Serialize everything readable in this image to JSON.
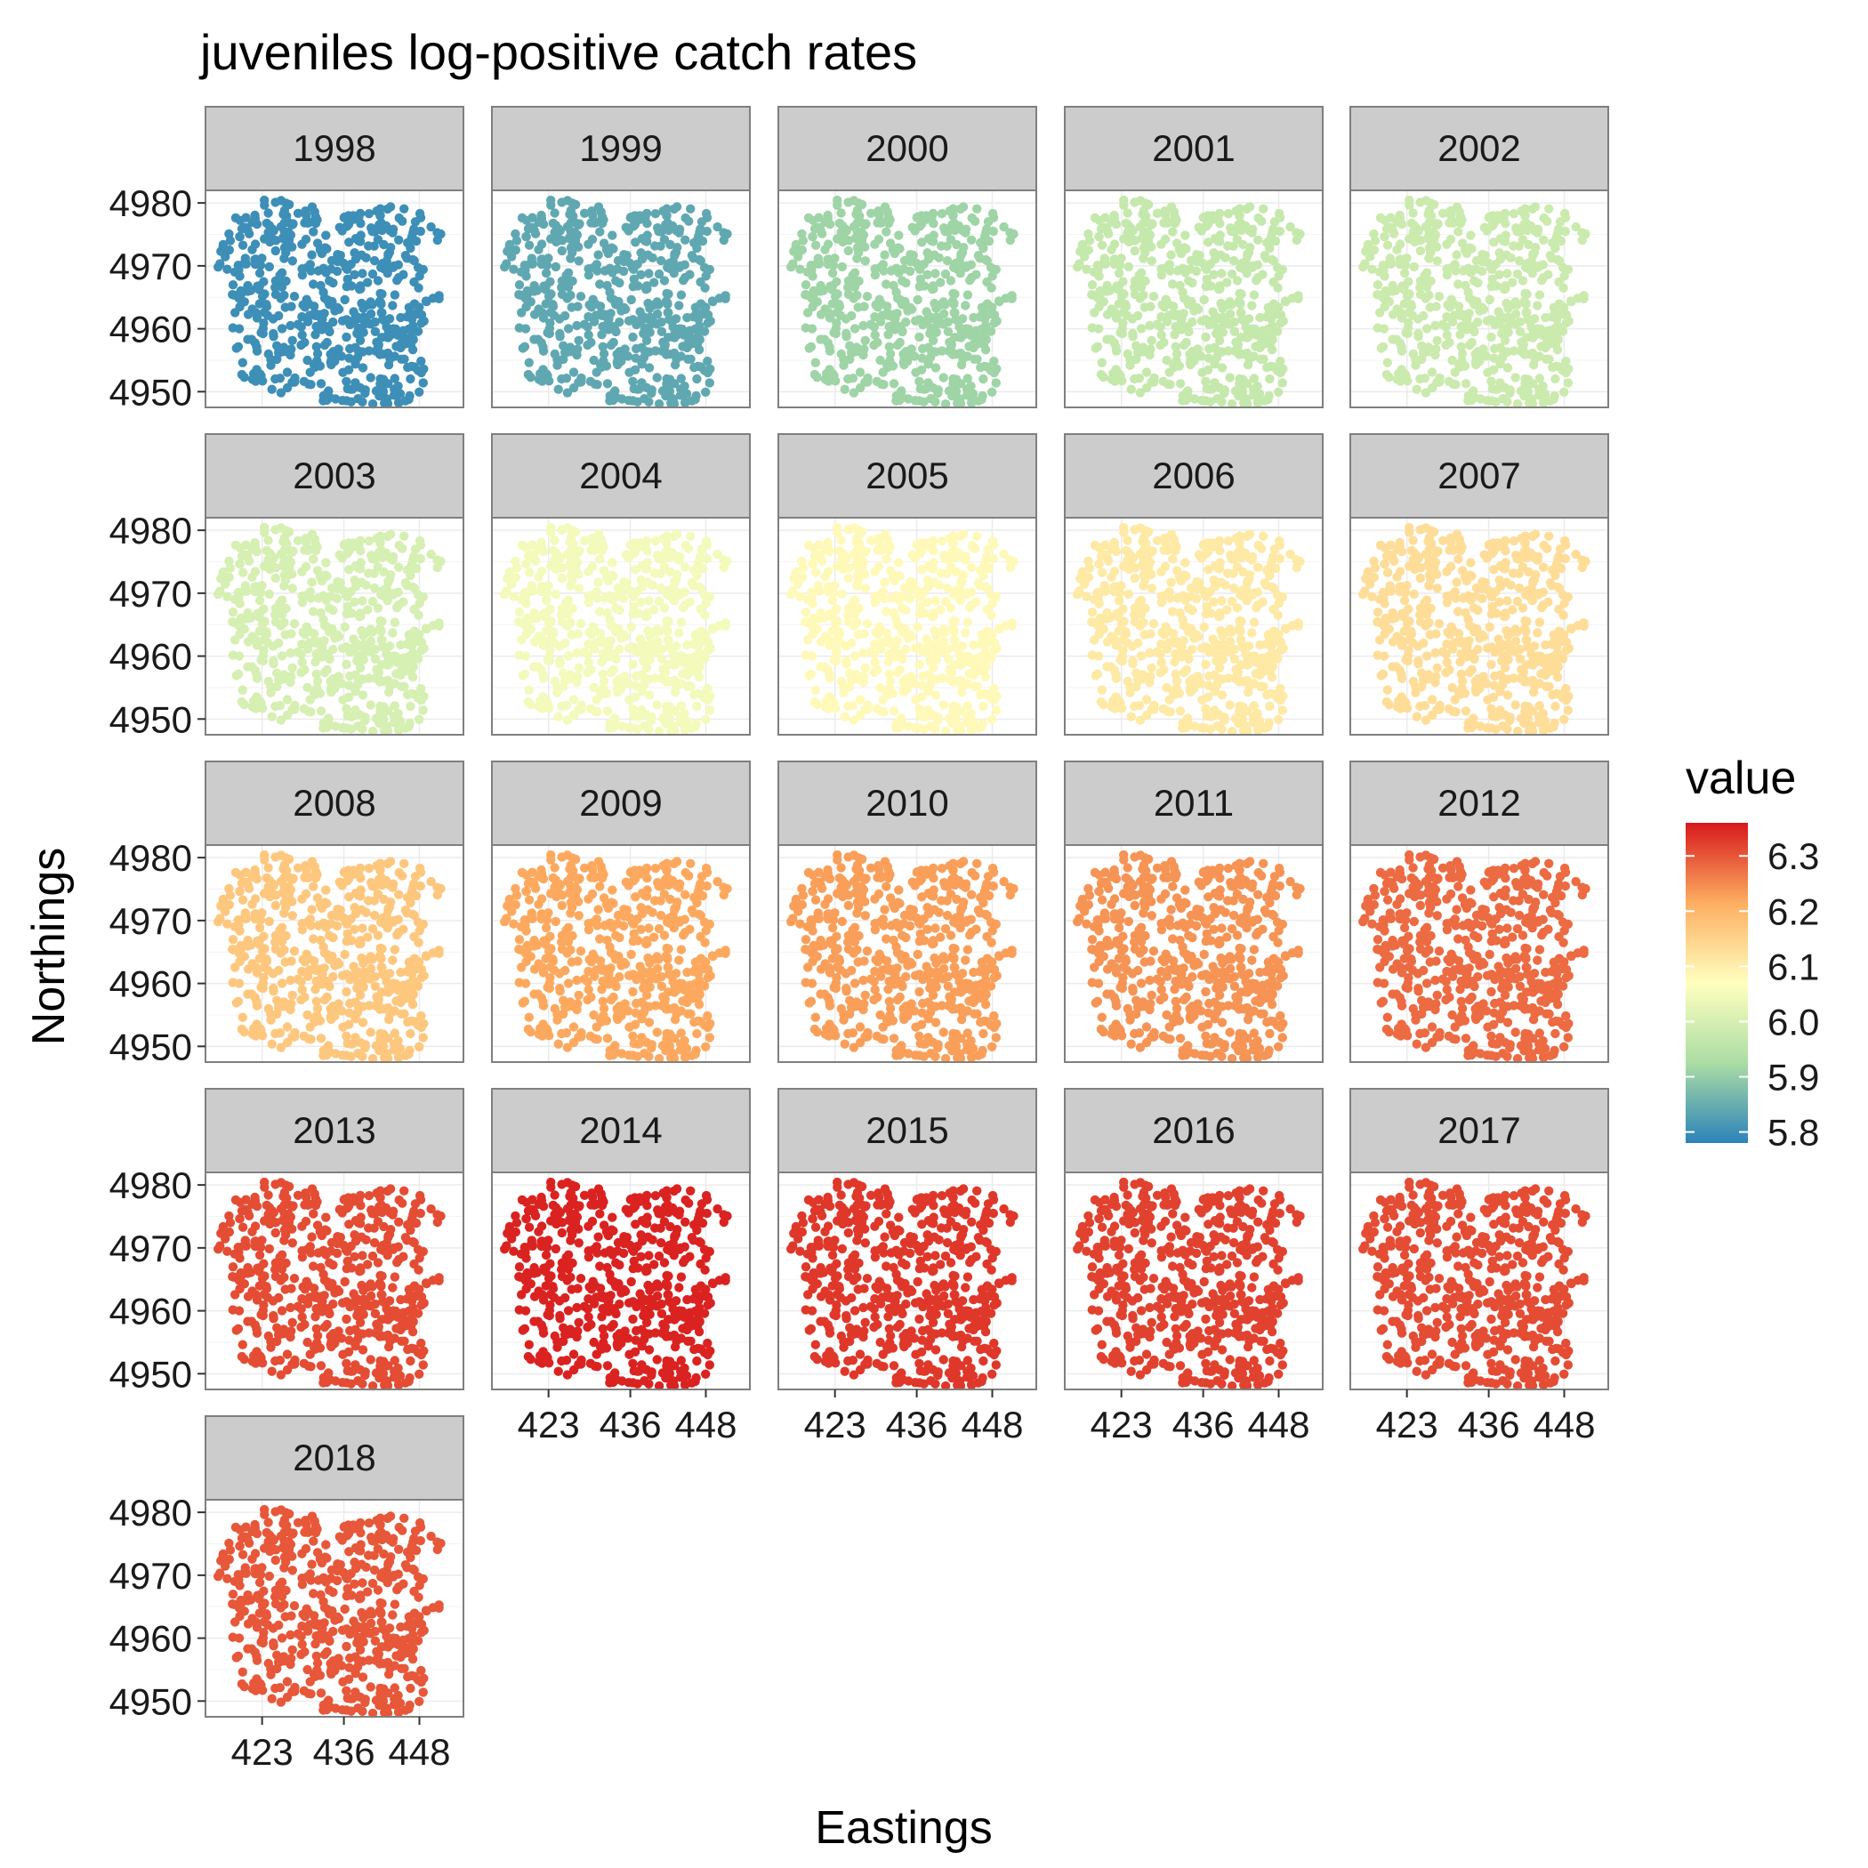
{
  "chart_data": {
    "type": "scatter",
    "title": "juveniles log-positive catch rates",
    "xlabel": "Eastings",
    "ylabel": "Northings",
    "facet_by": "year",
    "panels": [
      {
        "label": "1998",
        "value": 5.8
      },
      {
        "label": "1999",
        "value": 5.84
      },
      {
        "label": "2000",
        "value": 5.91
      },
      {
        "label": "2001",
        "value": 5.97
      },
      {
        "label": "2002",
        "value": 5.98
      },
      {
        "label": "2003",
        "value": 6.0
      },
      {
        "label": "2004",
        "value": 6.05
      },
      {
        "label": "2005",
        "value": 6.08
      },
      {
        "label": "2006",
        "value": 6.11
      },
      {
        "label": "2007",
        "value": 6.13
      },
      {
        "label": "2008",
        "value": 6.17
      },
      {
        "label": "2009",
        "value": 6.22
      },
      {
        "label": "2010",
        "value": 6.23
      },
      {
        "label": "2011",
        "value": 6.24
      },
      {
        "label": "2012",
        "value": 6.28
      },
      {
        "label": "2013",
        "value": 6.31
      },
      {
        "label": "2014",
        "value": 6.35
      },
      {
        "label": "2015",
        "value": 6.33
      },
      {
        "label": "2016",
        "value": 6.32
      },
      {
        "label": "2017",
        "value": 6.31
      },
      {
        "label": "2018",
        "value": 6.3
      }
    ],
    "x_ticks": [
      423,
      436,
      448
    ],
    "y_ticks": [
      4950,
      4960,
      4970,
      4980
    ],
    "xlim": [
      414,
      455
    ],
    "ylim": [
      4947.5,
      4982
    ],
    "grid": true,
    "legend": {
      "title": "value",
      "position": "right",
      "range": [
        5.78,
        6.36
      ],
      "ticks": [
        5.8,
        5.9,
        6.0,
        6.1,
        6.2,
        6.3
      ],
      "tick_labels": [
        "5.8",
        "5.9",
        "6.0",
        "6.1",
        "6.2",
        "6.3"
      ],
      "palette": [
        "#2b83ba",
        "#abdda4",
        "#ffffbf",
        "#fdae61",
        "#d7191c"
      ]
    }
  }
}
